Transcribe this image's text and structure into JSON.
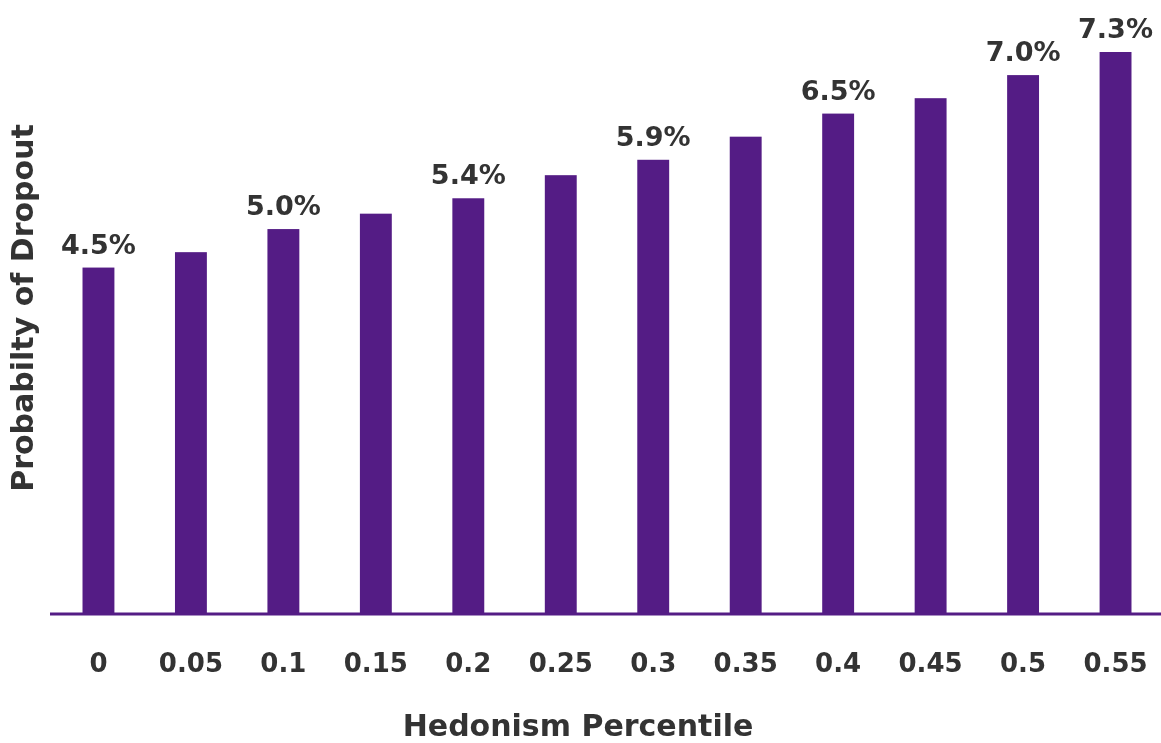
{
  "chart_data": {
    "type": "bar",
    "xlabel": "Hedonism Percentile",
    "ylabel": "Probabilty of Dropout",
    "categories": [
      "0",
      "0.05",
      "0.1",
      "0.15",
      "0.2",
      "0.25",
      "0.3",
      "0.35",
      "0.4",
      "0.45",
      "0.5",
      "0.55"
    ],
    "values": [
      4.5,
      4.7,
      5.0,
      5.2,
      5.4,
      5.7,
      5.9,
      6.2,
      6.5,
      6.7,
      7.0,
      7.3
    ],
    "value_labels": [
      "4.5%",
      null,
      "5.0%",
      null,
      "5.4%",
      null,
      "5.9%",
      null,
      "6.5%",
      null,
      "7.0%",
      "7.3%"
    ],
    "color": "#541c85"
  }
}
